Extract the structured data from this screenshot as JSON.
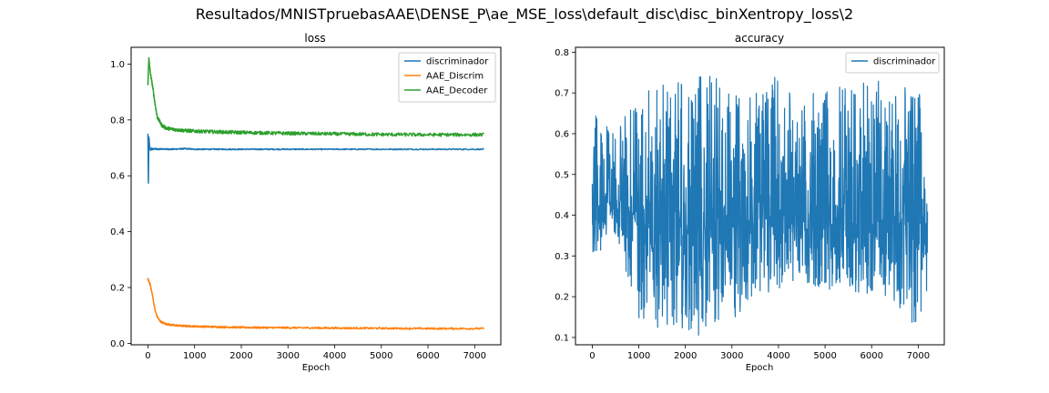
{
  "figure": {
    "suptitle": "Resultados/MNISTpruebasAAE\\DENSE_P\\ae_MSE_loss\\default_disc\\disc_binXentropy_loss\\2"
  },
  "colors": {
    "blue": "#1f77b4",
    "orange": "#ff7f0e",
    "green": "#2ca02c"
  },
  "chart_data": [
    {
      "type": "line",
      "title": "loss",
      "xlabel": "Epoch",
      "ylabel": "",
      "xlim": [
        -360,
        7560
      ],
      "ylim": [
        -0.005,
        1.06
      ],
      "xticks": [
        0,
        1000,
        2000,
        3000,
        4000,
        5000,
        6000,
        7000
      ],
      "yticks": [
        0.0,
        0.2,
        0.4,
        0.6,
        0.8,
        1.0
      ],
      "legend": "top-right",
      "grid": false,
      "series": [
        {
          "name": "discriminador",
          "color": "#1f77b4",
          "x": [
            0,
            10,
            20,
            40,
            60,
            80,
            100,
            150,
            200,
            300,
            500,
            800,
            1000,
            2000,
            3000,
            4000,
            5000,
            6000,
            7000,
            7200
          ],
          "y": [
            0.75,
            0.57,
            0.74,
            0.7,
            0.69,
            0.7,
            0.695,
            0.697,
            0.695,
            0.696,
            0.695,
            0.697,
            0.695,
            0.695,
            0.695,
            0.695,
            0.695,
            0.695,
            0.695,
            0.695
          ]
        },
        {
          "name": "AAE_Discrim",
          "color": "#ff7f0e",
          "x": [
            0,
            50,
            100,
            150,
            200,
            250,
            300,
            400,
            500,
            700,
            1000,
            1500,
            2000,
            3000,
            4000,
            5000,
            6000,
            7000,
            7200
          ],
          "y": [
            0.23,
            0.21,
            0.17,
            0.12,
            0.095,
            0.082,
            0.075,
            0.069,
            0.066,
            0.063,
            0.061,
            0.059,
            0.057,
            0.056,
            0.055,
            0.054,
            0.053,
            0.053,
            0.053
          ]
        },
        {
          "name": "AAE_Decoder",
          "color": "#2ca02c",
          "x": [
            0,
            20,
            50,
            100,
            150,
            200,
            300,
            400,
            600,
            800,
            1000,
            1500,
            2000,
            3000,
            4000,
            5000,
            6000,
            7000,
            7200
          ],
          "y": [
            0.93,
            1.02,
            0.97,
            0.92,
            0.86,
            0.81,
            0.78,
            0.77,
            0.765,
            0.762,
            0.76,
            0.757,
            0.755,
            0.752,
            0.75,
            0.748,
            0.747,
            0.747,
            0.747
          ]
        }
      ]
    },
    {
      "type": "line",
      "title": "accuracy",
      "xlabel": "Epoch",
      "ylabel": "",
      "xlim": [
        -360,
        7560
      ],
      "ylim": [
        0.082,
        0.812
      ],
      "xticks": [
        0,
        1000,
        2000,
        3000,
        4000,
        5000,
        6000,
        7000
      ],
      "yticks": [
        0.1,
        0.2,
        0.3,
        0.4,
        0.5,
        0.6,
        0.7,
        0.8
      ],
      "legend": "top-right",
      "grid": false,
      "series": [
        {
          "name": "discriminador",
          "color": "#1f77b4",
          "note_shape": "dense oscillation; band center and half-width over epochs",
          "x": [
            0,
            500,
            1000,
            1500,
            2000,
            2500,
            3000,
            3500,
            4000,
            4500,
            5000,
            5500,
            6000,
            6500,
            7000,
            7200
          ],
          "center": [
            0.45,
            0.42,
            0.4,
            0.38,
            0.37,
            0.37,
            0.38,
            0.39,
            0.4,
            0.39,
            0.38,
            0.38,
            0.38,
            0.38,
            0.38,
            0.38
          ],
          "upper": [
            0.66,
            0.6,
            0.72,
            0.74,
            0.72,
            0.77,
            0.7,
            0.7,
            0.76,
            0.68,
            0.72,
            0.72,
            0.74,
            0.72,
            0.72,
            0.6
          ],
          "lower": [
            0.3,
            0.34,
            0.14,
            0.12,
            0.11,
            0.1,
            0.14,
            0.2,
            0.22,
            0.24,
            0.2,
            0.21,
            0.19,
            0.18,
            0.12,
            0.22
          ]
        }
      ]
    }
  ]
}
